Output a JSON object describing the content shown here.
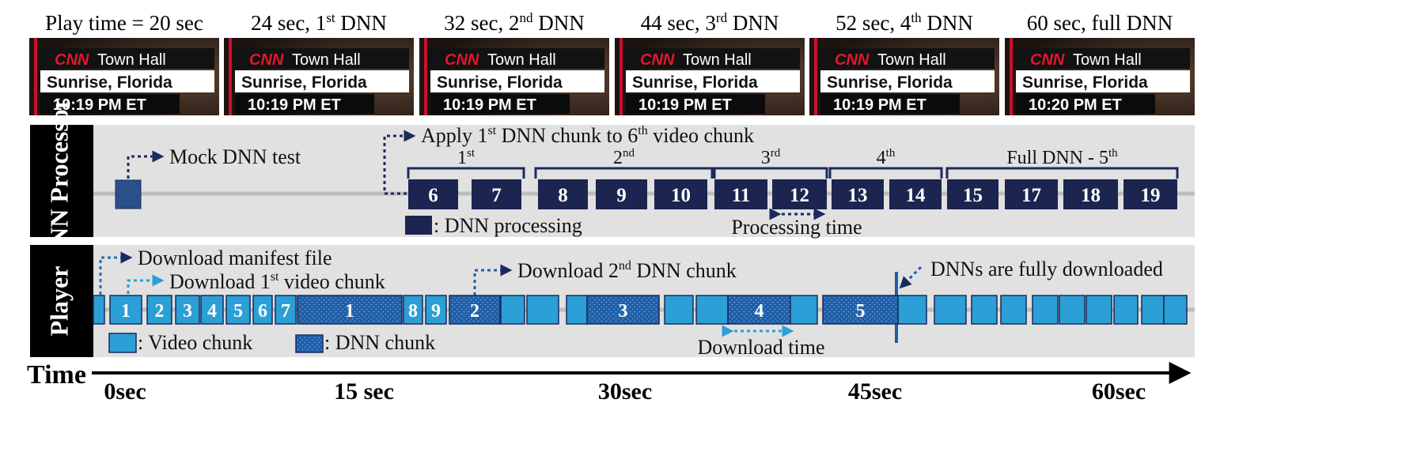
{
  "frames": [
    {
      "caption": "Play time = 20 sec",
      "network": "CNN",
      "show": "Town Hall",
      "location": "Sunrise, Florida",
      "time": "10:19 PM ET"
    },
    {
      "caption": "24 sec, 1st DNN",
      "network": "CNN",
      "show": "Town Hall",
      "location": "Sunrise, Florida",
      "time": "10:19 PM ET"
    },
    {
      "caption": "32 sec, 2nd DNN",
      "network": "CNN",
      "show": "Town Hall",
      "location": "Sunrise, Florida",
      "time": "10:19 PM ET"
    },
    {
      "caption": "44 sec, 3rd DNN",
      "network": "CNN",
      "show": "Town Hall",
      "location": "Sunrise, Florida",
      "time": "10:19 PM ET"
    },
    {
      "caption": "52 sec, 4th DNN",
      "network": "CNN",
      "show": "Town Hall",
      "location": "Sunrise, Florida",
      "time": "10:19 PM ET"
    },
    {
      "caption": "60 sec, full DNN",
      "network": "CNN",
      "show": "Town Hall",
      "location": "Sunrise, Florida",
      "time": "10:20 PM ET"
    }
  ],
  "dnn_processor": {
    "label": "DNN Processor",
    "mock_test": "Mock DNN test",
    "apply_note": "Apply 1st DNN chunk to 6th video chunk",
    "groups": [
      "1st",
      "2nd",
      "3rd",
      "4th",
      "Full DNN - 5th"
    ],
    "chunks": [
      "6",
      "7",
      "8",
      "9",
      "10",
      "11",
      "12",
      "13",
      "14",
      "15",
      "17",
      "18",
      "19"
    ],
    "legend": ": DNN processing",
    "processing_time": "Processing time"
  },
  "player": {
    "label": "Player",
    "manifest": "Download manifest file",
    "first_video": "Download 1st video chunk",
    "second_dnn": "Download 2nd DNN chunk",
    "fully_downloaded": "DNNs are fully downloaded",
    "video_chunks": [
      "1",
      "2",
      "3",
      "4",
      "5",
      "6",
      "7",
      "8",
      "9"
    ],
    "dnn_chunks": [
      "1",
      "2",
      "3",
      "4",
      "5"
    ],
    "legend_video": ": Video chunk",
    "legend_dnn": ": DNN chunk",
    "download_time": "Download time"
  },
  "timeline": {
    "label": "Time",
    "ticks": [
      "0sec",
      "15 sec",
      "30sec",
      "45sec",
      "60sec"
    ]
  },
  "colors": {
    "dnn_block": "#1b2550",
    "video_block": "#2b9fd6",
    "dnn_chunk": "#1f5ea8",
    "arrow_dark": "#1b2a5c",
    "arrow_light": "#2b9fd6",
    "panel": "#e1e1e1",
    "label_bg": "#000000"
  }
}
